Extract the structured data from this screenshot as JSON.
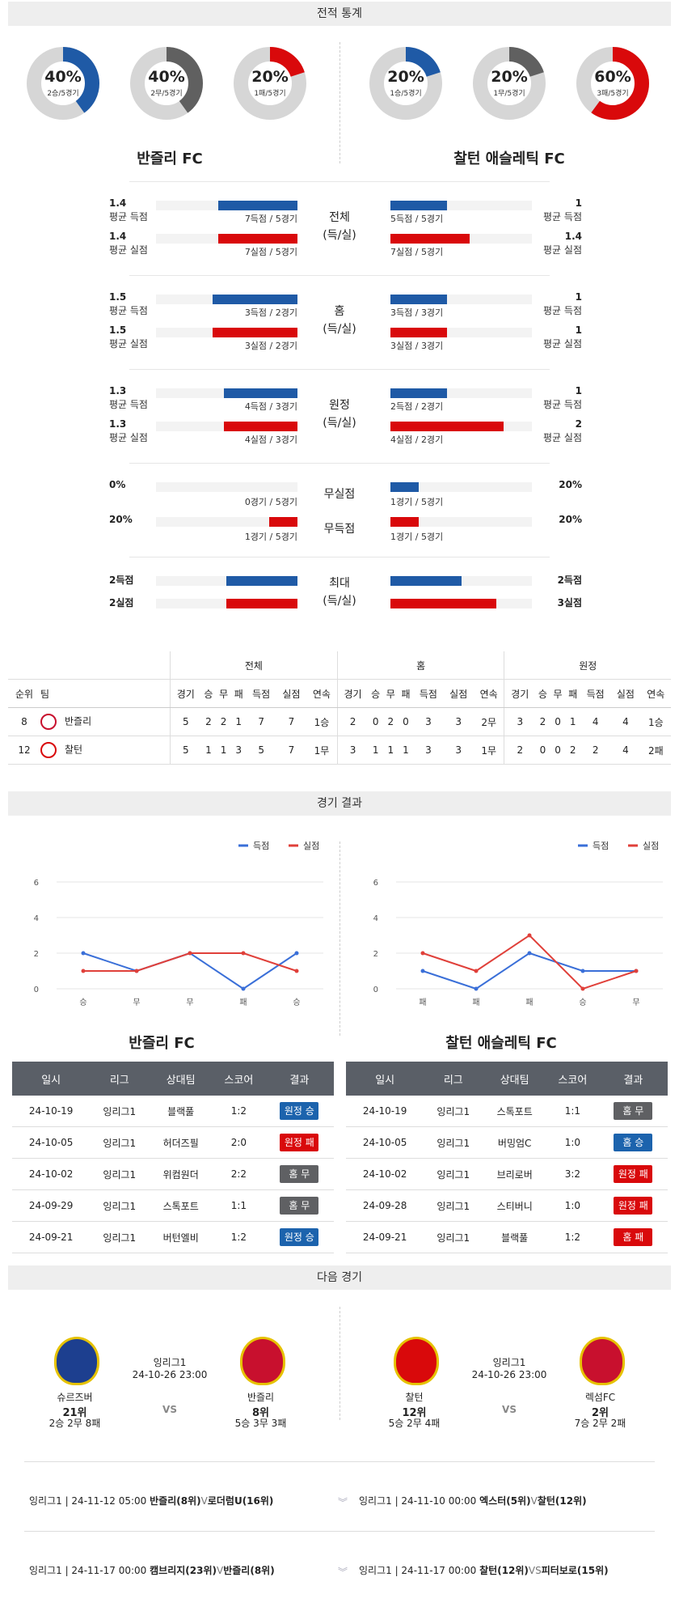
{
  "sections": {
    "stats": "전적 통계",
    "results": "경기 결과",
    "next": "다음 경기"
  },
  "colors": {
    "blue": "#1f5aa6",
    "red": "#d9090b",
    "gray": "#666666"
  },
  "teams": {
    "home": "반즐리 FC",
    "away": "찰턴 애슬레틱 FC"
  },
  "donuts": [
    {
      "pct": "40%",
      "sub": "2승/5경기",
      "value": 0.4,
      "color": "#1f5aa6"
    },
    {
      "pct": "40%",
      "sub": "2무/5경기",
      "value": 0.4,
      "color": "#606060"
    },
    {
      "pct": "20%",
      "sub": "1패/5경기",
      "value": 0.2,
      "color": "#d9090b"
    },
    {
      "pct": "20%",
      "sub": "1승/5경기",
      "value": 0.2,
      "color": "#1f5aa6"
    },
    {
      "pct": "20%",
      "sub": "1무/5경기",
      "value": 0.2,
      "color": "#606060"
    },
    {
      "pct": "60%",
      "sub": "3패/5경기",
      "value": 0.6,
      "color": "#d9090b"
    }
  ],
  "stat_groups": [
    {
      "label1": "전체",
      "label2": "(득/실)",
      "rows": [
        {
          "lv": "1.4",
          "ll": "평균 득점",
          "lcap": "7득점 / 5경기",
          "lfill": 0.56,
          "rv": "1",
          "rl": "평균 득점",
          "rcap": "5득점 / 5경기",
          "rfill": 0.4,
          "color": "blue"
        },
        {
          "lv": "1.4",
          "ll": "평균 실점",
          "lcap": "7실점 / 5경기",
          "lfill": 0.56,
          "rv": "1.4",
          "rl": "평균 실점",
          "rcap": "7실점 / 5경기",
          "rfill": 0.56,
          "color": "red"
        }
      ]
    },
    {
      "label1": "홈",
      "label2": "(득/실)",
      "rows": [
        {
          "lv": "1.5",
          "ll": "평균 득점",
          "lcap": "3득점 / 2경기",
          "lfill": 0.6,
          "rv": "1",
          "rl": "평균 득점",
          "rcap": "3득점 / 3경기",
          "rfill": 0.4,
          "color": "blue"
        },
        {
          "lv": "1.5",
          "ll": "평균 실점",
          "lcap": "3실점 / 2경기",
          "lfill": 0.6,
          "rv": "1",
          "rl": "평균 실점",
          "rcap": "3실점 / 3경기",
          "rfill": 0.4,
          "color": "red"
        }
      ]
    },
    {
      "label1": "원정",
      "label2": "(득/실)",
      "rows": [
        {
          "lv": "1.3",
          "ll": "평균 득점",
          "lcap": "4득점 / 3경기",
          "lfill": 0.52,
          "rv": "1",
          "rl": "평균 득점",
          "rcap": "2득점 / 2경기",
          "rfill": 0.4,
          "color": "blue"
        },
        {
          "lv": "1.3",
          "ll": "평균 실점",
          "lcap": "4실점 / 3경기",
          "lfill": 0.52,
          "rv": "2",
          "rl": "평균 실점",
          "rcap": "4실점 / 2경기",
          "rfill": 0.8,
          "color": "red"
        }
      ]
    }
  ],
  "clean": [
    {
      "label": "무실점",
      "lv": "0%",
      "lcap": "0경기 / 5경기",
      "lfill": 0.0,
      "rv": "20%",
      "rcap": "1경기 / 5경기",
      "rfill": 0.2,
      "color": "blue"
    },
    {
      "label": "무득점",
      "lv": "20%",
      "lcap": "1경기 / 5경기",
      "lfill": 0.2,
      "rv": "20%",
      "rcap": "1경기 / 5경기",
      "rfill": 0.2,
      "color": "red"
    }
  ],
  "maxg": {
    "label1": "최대",
    "label2": "(득/실)",
    "rows": [
      {
        "lv": "2득점",
        "lfill": 0.5,
        "rv": "2득점",
        "rfill": 0.5,
        "color": "blue"
      },
      {
        "lv": "2실점",
        "lfill": 0.5,
        "rv": "3실점",
        "rfill": 0.75,
        "color": "red"
      }
    ]
  },
  "standings": {
    "groups": [
      "전체",
      "홈",
      "원정"
    ],
    "h1": "순위",
    "h2": "팀",
    "cols": [
      "경기",
      "승",
      "무",
      "패",
      "득점",
      "실점",
      "연속"
    ],
    "rows": [
      {
        "rank": "8",
        "team": "반즐리",
        "logo": "#c8102e",
        "all": [
          "5",
          "2",
          "2",
          "1",
          "7",
          "7",
          "1승"
        ],
        "home": [
          "2",
          "0",
          "2",
          "0",
          "3",
          "3",
          "2무"
        ],
        "away": [
          "3",
          "2",
          "0",
          "1",
          "4",
          "4",
          "1승"
        ]
      },
      {
        "rank": "12",
        "team": "찰턴",
        "logo": "#d9090b",
        "all": [
          "5",
          "1",
          "1",
          "3",
          "5",
          "7",
          "1무"
        ],
        "home": [
          "3",
          "1",
          "1",
          "1",
          "3",
          "3",
          "1무"
        ],
        "away": [
          "2",
          "0",
          "0",
          "2",
          "2",
          "4",
          "2패"
        ]
      }
    ]
  },
  "chart_data": [
    {
      "type": "line",
      "categories": [
        "승",
        "무",
        "무",
        "패",
        "승"
      ],
      "series": [
        {
          "name": "득점",
          "values": [
            2,
            1,
            2,
            0,
            2
          ],
          "color": "#3a6fd8"
        },
        {
          "name": "실점",
          "values": [
            1,
            1,
            2,
            2,
            1
          ],
          "color": "#e0403a"
        }
      ],
      "ylim": [
        0,
        6
      ],
      "yticks": [
        "0",
        "2",
        "4",
        "6"
      ],
      "legend": "top-right",
      "grid": true
    },
    {
      "type": "line",
      "categories": [
        "패",
        "패",
        "패",
        "승",
        "무"
      ],
      "series": [
        {
          "name": "득점",
          "values": [
            1,
            0,
            2,
            1,
            1
          ],
          "color": "#3a6fd8"
        },
        {
          "name": "실점",
          "values": [
            2,
            1,
            3,
            0,
            1
          ],
          "color": "#e0403a"
        }
      ],
      "ylim": [
        0,
        6
      ],
      "yticks": [
        "0",
        "2",
        "4",
        "6"
      ],
      "legend": "top-right",
      "grid": true
    }
  ],
  "results": {
    "headers": [
      "일시",
      "리그",
      "상대팀",
      "스코어",
      "결과"
    ],
    "home_title": "반즐리 FC",
    "away_title": "찰턴 애슬레틱 FC",
    "home": [
      {
        "date": "24-10-19",
        "league": "잉리그1",
        "opp": "블랙풀",
        "score": "1:2",
        "res": "원정 승",
        "c": "b-blue"
      },
      {
        "date": "24-10-05",
        "league": "잉리그1",
        "opp": "허더즈필",
        "score": "2:0",
        "res": "원정 패",
        "c": "b-red"
      },
      {
        "date": "24-10-02",
        "league": "잉리그1",
        "opp": "위컴원더",
        "score": "2:2",
        "res": "홈 무",
        "c": "b-gray"
      },
      {
        "date": "24-09-29",
        "league": "잉리그1",
        "opp": "스톡포트",
        "score": "1:1",
        "res": "홈 무",
        "c": "b-gray"
      },
      {
        "date": "24-09-21",
        "league": "잉리그1",
        "opp": "버턴엘비",
        "score": "1:2",
        "res": "원정 승",
        "c": "b-blue"
      }
    ],
    "away": [
      {
        "date": "24-10-19",
        "league": "잉리그1",
        "opp": "스톡포트",
        "score": "1:1",
        "res": "홈 무",
        "c": "b-gray"
      },
      {
        "date": "24-10-05",
        "league": "잉리그1",
        "opp": "버밍엄C",
        "score": "1:0",
        "res": "홈 승",
        "c": "b-blue"
      },
      {
        "date": "24-10-02",
        "league": "잉리그1",
        "opp": "브리로버",
        "score": "3:2",
        "res": "원정 패",
        "c": "b-red"
      },
      {
        "date": "24-09-28",
        "league": "잉리그1",
        "opp": "스티버니",
        "score": "1:0",
        "res": "원정 패",
        "c": "b-red"
      },
      {
        "date": "24-09-21",
        "league": "잉리그1",
        "opp": "블랙풀",
        "score": "1:2",
        "res": "홈 패",
        "c": "b-red"
      }
    ]
  },
  "next": [
    {
      "league": "잉리그1",
      "time": "24-10-26 23:00",
      "vs": "VS",
      "t1": {
        "name": "슈르즈버",
        "rank": "21위",
        "rec": "2승 2무 8패",
        "logo": "#1d3f8f"
      },
      "t2": {
        "name": "반즐리",
        "rank": "8위",
        "rec": "5승 3무 3패",
        "logo": "#c8102e"
      }
    },
    {
      "league": "잉리그1",
      "time": "24-10-26 23:00",
      "vs": "VS",
      "t1": {
        "name": "찰턴",
        "rank": "12위",
        "rec": "5승 2무 4패",
        "logo": "#d9090b"
      },
      "t2": {
        "name": "렉섬FC",
        "rank": "2위",
        "rec": "7승 2무 2패",
        "logo": "#c8102e"
      }
    }
  ],
  "future": [
    {
      "a_pre": "잉리그1 | 24-11-12 05:00",
      "a_t1": "반즐리(8위)",
      "a_v": "V",
      "a_t2": "로더럼U(16위)",
      "b_pre": "잉리그1 | 24-11-10 00:00",
      "b_t1": "엑스터(5위)",
      "b_v": "V",
      "b_t2": "찰턴(12위)"
    },
    {
      "a_pre": "잉리그1 | 24-11-17 00:00",
      "a_t1": "캠브리지(23위)",
      "a_v": "V",
      "a_t2": "반즐리(8위)",
      "b_pre": "잉리그1 | 24-11-17 00:00",
      "b_t1": "찰턴(12위)",
      "b_v": "VS",
      "b_t2": "피터보로(15위)"
    }
  ]
}
